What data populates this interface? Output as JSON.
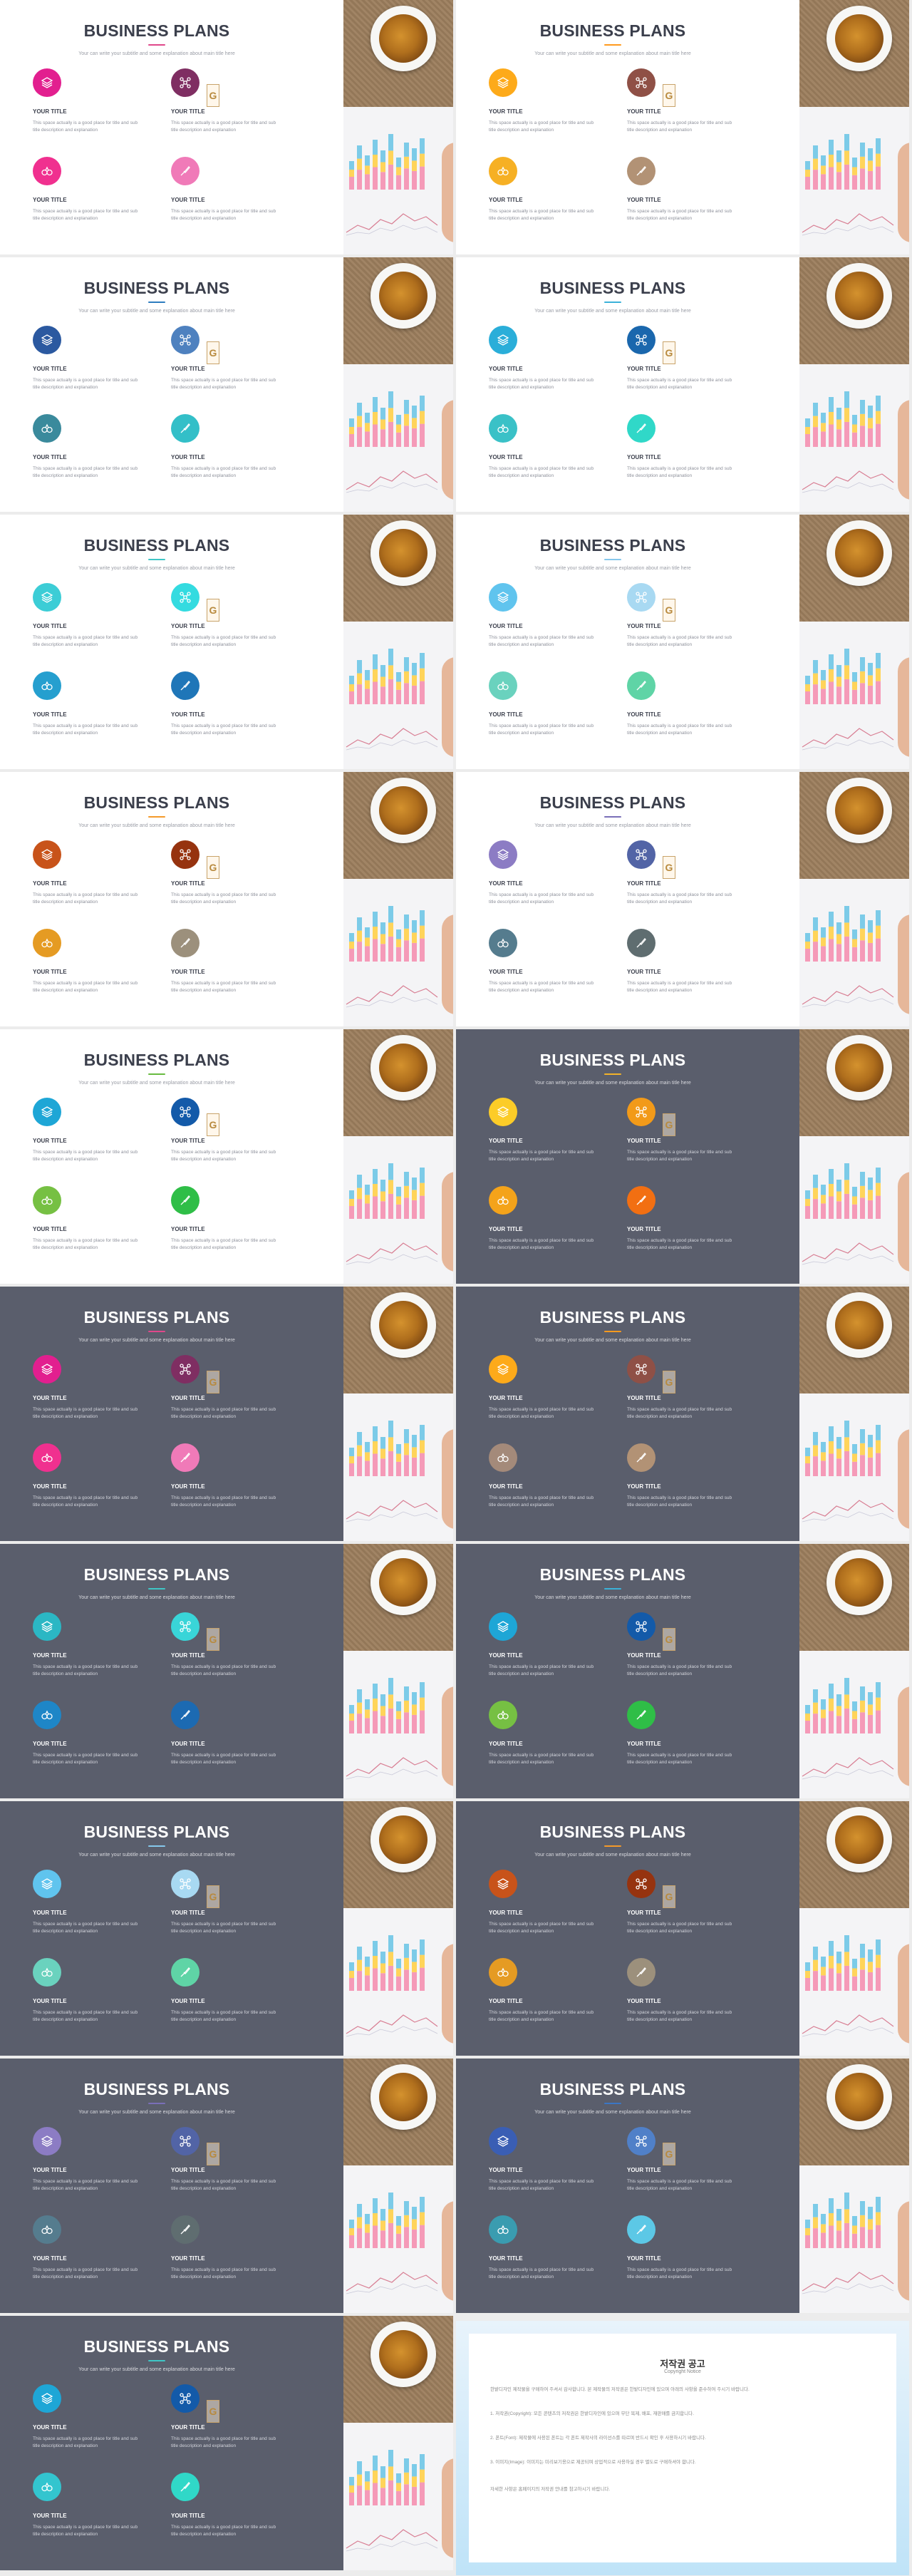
{
  "slide_text": {
    "title": "BUSINESS PLANS",
    "subtitle": "Your can write your subtitle and some explanation about main title here",
    "item_title": "YOUR TITLE",
    "item_desc": "This space actually is a good place for title and sub title description and explanation"
  },
  "slides": [
    {
      "theme": "light",
      "accent": "#e0488b",
      "colors": [
        "#e21f8f",
        "#7f2e62",
        "#f0308f",
        "#f07ab8"
      ]
    },
    {
      "theme": "light",
      "accent": "#ff9a1e",
      "colors": [
        "#fdaa1a",
        "#8f5046",
        "#f6b024",
        "#b29275"
      ]
    },
    {
      "theme": "light",
      "accent": "#2d7dbf",
      "colors": [
        "#2b59a0",
        "#4e81bf",
        "#3a8a9c",
        "#33bfc8"
      ]
    },
    {
      "theme": "light",
      "accent": "#3bb2d9",
      "colors": [
        "#2aaed9",
        "#1a67ad",
        "#3ac1c7",
        "#30d8c8"
      ]
    },
    {
      "theme": "light",
      "accent": "#3fc6c6",
      "colors": [
        "#3ccdd6",
        "#34dbe0",
        "#259fcf",
        "#1f76b8"
      ]
    },
    {
      "theme": "light",
      "accent": "#86c8ec",
      "colors": [
        "#60c4ee",
        "#a8d9f2",
        "#6ad2be",
        "#5fd4a6"
      ]
    },
    {
      "theme": "light",
      "accent": "#f49a2a",
      "colors": [
        "#c8531a",
        "#96330f",
        "#e59b23",
        "#9c907c"
      ]
    },
    {
      "theme": "light",
      "accent": "#7a6fb8",
      "colors": [
        "#8c7cc4",
        "#5264a6",
        "#557c8e",
        "#5f6d70"
      ]
    },
    {
      "theme": "light",
      "accent": "#68bb40",
      "colors": [
        "#1ea6d6",
        "#135aa9",
        "#76c043",
        "#2fbe47"
      ]
    },
    {
      "theme": "dark",
      "accent": "#f2b229",
      "colors": [
        "#fccc28",
        "#f29a19",
        "#f4a31a",
        "#f26f12"
      ]
    },
    {
      "theme": "dark",
      "accent": "#e0488b",
      "colors": [
        "#e21f8f",
        "#7f2e62",
        "#f0308f",
        "#f07ab8"
      ]
    },
    {
      "theme": "dark",
      "accent": "#ff9a1e",
      "colors": [
        "#fdaa1a",
        "#8f5046",
        "#a48a7a",
        "#b29275"
      ]
    },
    {
      "theme": "dark",
      "accent": "#3fc6c6",
      "colors": [
        "#2bb7c4",
        "#39d5d8",
        "#1e86c7",
        "#1c6ab2"
      ]
    },
    {
      "theme": "dark",
      "accent": "#3bb2d9",
      "colors": [
        "#1ea6d6",
        "#135aa9",
        "#76c043",
        "#2fbe47"
      ]
    },
    {
      "theme": "dark",
      "accent": "#86c8ec",
      "colors": [
        "#60c4ee",
        "#a8d9f2",
        "#6ad2be",
        "#5fd4a6"
      ]
    },
    {
      "theme": "dark",
      "accent": "#f49a2a",
      "colors": [
        "#c8531a",
        "#96330f",
        "#e59b23",
        "#9c907c"
      ]
    },
    {
      "theme": "dark",
      "accent": "#7a6fb8",
      "colors": [
        "#8c7cc4",
        "#5264a6",
        "#557c8e",
        "#5f6d70"
      ]
    },
    {
      "theme": "dark",
      "accent": "#3b76c4",
      "colors": [
        "#3a5eb4",
        "#5080c8",
        "#3a9cb0",
        "#5cc8e6"
      ]
    },
    {
      "theme": "dark",
      "accent": "#3fc6c6",
      "colors": [
        "#1ea6d6",
        "#135aa9",
        "#33c5cf",
        "#30d8c8"
      ]
    }
  ],
  "notice": {
    "title": "저작권 공고",
    "subtitle": "Copyright Notice",
    "paragraphs": [
      "한밭디자인 제작물을 구매하여 주셔서 감사합니다. 본 제작물의 저작권은 한밭디자인에 있으며 아래의 사항을 준수하여 주시기 바랍니다.",
      "1. 저작권(Copyright): 모든 콘텐츠의 저작권은 한밭디자인에 있으며 무단 복제, 배포, 재판매를 금지합니다.",
      "2. 폰트(Font): 제작물에 사용된 폰트는 각 폰트 제작사의 라이선스를 따르며 반드시 확인 후 사용하시기 바랍니다.",
      "3. 이미지(Image): 이미지는 미리보기용으로 제공되며 상업적으로 사용하실 경우 별도로 구매하셔야 합니다.",
      "자세한 사항은 홈페이지의 저작권 안내를 참고하시기 바랍니다."
    ]
  }
}
